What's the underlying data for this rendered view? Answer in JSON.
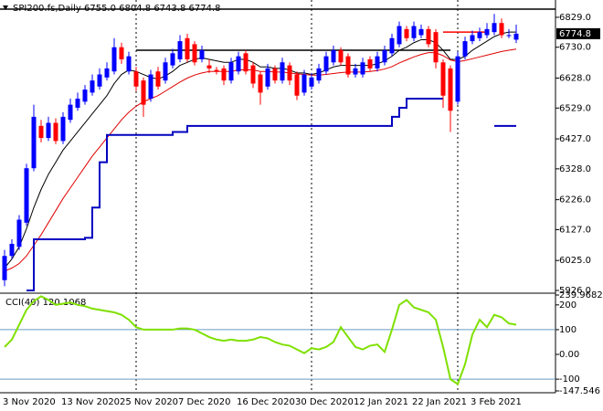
{
  "chart_data": [
    {
      "type": "candlestick",
      "title": "SPI200.fs,Daily  6755.0 6804.8 6743.8 6774.8",
      "categories": [
        "3 Nov 2020",
        null,
        null,
        null,
        null,
        null,
        null,
        null,
        "13 Nov 2020",
        null,
        null,
        null,
        null,
        null,
        null,
        null,
        "25 Nov 2020",
        null,
        null,
        null,
        null,
        null,
        null,
        null,
        "7 Dec 2020",
        null,
        null,
        null,
        null,
        null,
        null,
        null,
        "16 Dec 2020",
        null,
        null,
        null,
        null,
        null,
        null,
        null,
        "30 Dec 2020",
        null,
        null,
        null,
        null,
        null,
        null,
        null,
        "12 Jan 2021",
        null,
        null,
        null,
        null,
        null,
        null,
        null,
        "22 Jan 2021",
        null,
        null,
        null,
        null,
        null,
        null,
        null,
        "3 Feb 2021",
        null,
        null,
        null,
        null,
        null,
        null
      ],
      "open": [
        5960,
        6040,
        6070,
        6150,
        6330,
        6470,
        6430,
        6480,
        6420,
        6490,
        6530,
        6550,
        6580,
        6600,
        6630,
        6650,
        6730,
        6650,
        6650,
        6620,
        6560,
        6650,
        6620,
        6670,
        6690,
        6760,
        6740,
        6690,
        6670,
        6655,
        6660,
        6620,
        6650,
        6710,
        6670,
        6640,
        6600,
        6660,
        6620,
        6670,
        6640,
        6580,
        6600,
        6620,
        6650,
        6680,
        6720,
        6700,
        6640,
        6640,
        6690,
        6660,
        6680,
        6710,
        6740,
        6790,
        6760,
        6770,
        6790,
        6780,
        6680,
        6660,
        6550,
        6700,
        6750,
        6760,
        6770,
        6780,
        6810,
        6770,
        6755
      ],
      "high": [
        6060,
        6095,
        6175,
        6345,
        6540,
        6490,
        6500,
        6495,
        6515,
        6560,
        6580,
        6605,
        6640,
        6660,
        6680,
        6760,
        6745,
        6715,
        6665,
        6630,
        6655,
        6665,
        6695,
        6725,
        6770,
        6775,
        6750,
        6735,
        6690,
        6665,
        6670,
        6695,
        6715,
        6720,
        6680,
        6650,
        6675,
        6670,
        6695,
        6680,
        6650,
        6655,
        6645,
        6675,
        6715,
        6735,
        6730,
        6710,
        6675,
        6695,
        6700,
        6715,
        6735,
        6775,
        6815,
        6800,
        6815,
        6805,
        6800,
        6790,
        6690,
        6670,
        6715,
        6765,
        6785,
        6795,
        6810,
        6840,
        6825,
        6790,
        6804.8
      ],
      "low": [
        5940,
        6030,
        6060,
        6140,
        6320,
        6415,
        6420,
        6410,
        6410,
        6480,
        6520,
        6540,
        6570,
        6590,
        6620,
        6640,
        6675,
        6640,
        6585,
        6500,
        6550,
        6590,
        6610,
        6660,
        6680,
        6680,
        6670,
        6680,
        6645,
        6640,
        6605,
        6610,
        6640,
        6640,
        6595,
        6540,
        6590,
        6610,
        6610,
        6605,
        6555,
        6570,
        6590,
        6610,
        6640,
        6670,
        6670,
        6630,
        6630,
        6630,
        6650,
        6650,
        6670,
        6700,
        6730,
        6750,
        6750,
        6760,
        6730,
        6660,
        6530,
        6450,
        6540,
        6690,
        6740,
        6750,
        6760,
        6770,
        6760,
        6760,
        6743.8
      ],
      "close": [
        6040,
        6080,
        6160,
        6330,
        6500,
        6430,
        6480,
        6420,
        6500,
        6540,
        6560,
        6590,
        6620,
        6640,
        6660,
        6730,
        6690,
        6700,
        6600,
        6540,
        6640,
        6600,
        6680,
        6710,
        6750,
        6690,
        6680,
        6720,
        6660,
        6650,
        6620,
        6680,
        6700,
        6650,
        6610,
        6580,
        6660,
        6620,
        6680,
        6620,
        6570,
        6640,
        6630,
        6660,
        6700,
        6720,
        6680,
        6640,
        6660,
        6680,
        6660,
        6700,
        6720,
        6760,
        6800,
        6760,
        6800,
        6790,
        6740,
        6680,
        6570,
        6520,
        6700,
        6750,
        6770,
        6780,
        6790,
        6810,
        6770,
        6770,
        6774.8
      ],
      "up_color": "#0000ff",
      "down_color": "#ff0000",
      "overlays": [
        {
          "color": "#000000",
          "values": [
            6000,
            6030,
            6070,
            6130,
            6200,
            6260,
            6310,
            6350,
            6390,
            6420,
            6450,
            6480,
            6510,
            6540,
            6570,
            6610,
            6640,
            6655,
            6650,
            6640,
            6630,
            6625,
            6635,
            6650,
            6670,
            6680,
            6690,
            6695,
            6690,
            6685,
            6680,
            6680,
            6690,
            6690,
            6680,
            6665,
            6665,
            6660,
            6660,
            6655,
            6645,
            6645,
            6640,
            6645,
            6655,
            6665,
            6670,
            6670,
            6670,
            6670,
            6670,
            6675,
            6685,
            6700,
            6720,
            6730,
            6745,
            6755,
            6755,
            6745,
            6720,
            6690,
            6690,
            6700,
            6720,
            6735,
            6750,
            6765,
            6775,
            6780,
            6780
          ]
        },
        {
          "color": "#e00000",
          "values": [
            5990,
            6000,
            6015,
            6040,
            6075,
            6110,
            6150,
            6190,
            6230,
            6265,
            6300,
            6335,
            6370,
            6400,
            6430,
            6460,
            6490,
            6515,
            6535,
            6550,
            6560,
            6570,
            6585,
            6600,
            6615,
            6628,
            6638,
            6645,
            6650,
            6650,
            6650,
            6650,
            6655,
            6655,
            6655,
            6650,
            6650,
            6648,
            6648,
            6645,
            6642,
            6640,
            6638,
            6638,
            6640,
            6643,
            6646,
            6648,
            6648,
            6648,
            6650,
            6653,
            6658,
            6666,
            6678,
            6688,
            6698,
            6706,
            6712,
            6712,
            6702,
            6688,
            6682,
            6686,
            6692,
            6698,
            6704,
            6710,
            6716,
            6720,
            6724
          ]
        },
        {
          "color": "#0000c0",
          "step": true,
          "values": [
            null,
            null,
            null,
            5926,
            6095,
            6095,
            6095,
            6095,
            6095,
            6095,
            6095,
            6100,
            6200,
            6350,
            6440,
            6440,
            6440,
            6440,
            6440,
            6440,
            6440,
            6440,
            6440,
            6450,
            6450,
            6470,
            6470,
            6470,
            6470,
            6470,
            6470,
            6470,
            6470,
            6470,
            6470,
            6470,
            6470,
            6470,
            6470,
            6470,
            6470,
            6470,
            6470,
            6470,
            6470,
            6470,
            6470,
            6470,
            6470,
            6470,
            6470,
            6470,
            6470,
            6500,
            6530,
            6560,
            6560,
            6560,
            6560,
            6560,
            6560,
            null,
            null,
            null,
            null,
            null,
            null,
            6470,
            6470,
            6470,
            6470
          ]
        }
      ],
      "hlines": [
        {
          "value": 6856,
          "color": "#000000"
        },
        {
          "value": 6720,
          "color": "#000000",
          "from": 18,
          "to": 61
        },
        {
          "value": 6780,
          "color": "#ff0000",
          "from": 60,
          "to": 66
        }
      ],
      "last_price": 6774.8,
      "ylim": [
        5926,
        6862
      ],
      "yticks": [
        {
          "value": 5926,
          "label": "5926.0"
        },
        {
          "value": 6025,
          "label": "6025.0"
        },
        {
          "value": 6127,
          "label": "6127.0"
        },
        {
          "value": 6226,
          "label": "6226.0"
        },
        {
          "value": 6328,
          "label": "6328.0"
        },
        {
          "value": 6427,
          "label": "6427.0"
        },
        {
          "value": 6529,
          "label": "6529.0"
        },
        {
          "value": 6628,
          "label": "6628.0"
        },
        {
          "value": 6730,
          "label": "6730.0"
        },
        {
          "value": 6829,
          "label": "6829.0"
        }
      ]
    },
    {
      "type": "line",
      "title": "CCI(40) 120.1068",
      "color": "#7fe000",
      "values": [
        30,
        60,
        120,
        180,
        215,
        235,
        220,
        200,
        205,
        210,
        200,
        195,
        185,
        180,
        175,
        170,
        160,
        140,
        110,
        100,
        100,
        100,
        100,
        100,
        105,
        105,
        100,
        85,
        70,
        60,
        55,
        60,
        55,
        55,
        60,
        70,
        65,
        50,
        40,
        35,
        20,
        5,
        25,
        20,
        30,
        50,
        110,
        70,
        30,
        20,
        35,
        40,
        10,
        100,
        200,
        220,
        190,
        180,
        170,
        140,
        30,
        -100,
        -120,
        -40,
        80,
        140,
        110,
        160,
        150,
        125,
        120.1068
      ],
      "levels": [
        100,
        -100
      ],
      "level_color": "#6a9bc3",
      "ylim": [
        -147.546,
        239.9682
      ],
      "yticks": [
        239.9682,
        200,
        100,
        {
          "value": 0,
          "label": "0.00"
        },
        -100,
        -147.546
      ]
    }
  ]
}
